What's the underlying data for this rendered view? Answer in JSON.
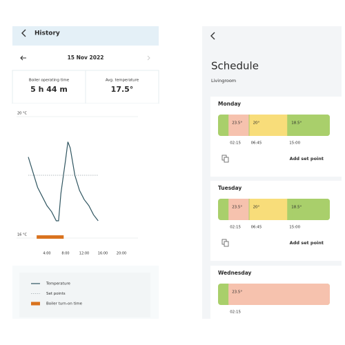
{
  "history": {
    "title": "History",
    "date": "15 Nov 2022",
    "stats": [
      {
        "label": "Boiler operating time",
        "value": "5 h 44 m"
      },
      {
        "label": "Avg. temperature",
        "value": "17.5°"
      }
    ],
    "chart_data": {
      "type": "line",
      "x": [
        0,
        1,
        2,
        3,
        4,
        5,
        6,
        6.5,
        7,
        8,
        8.5,
        9,
        10,
        11,
        12,
        13,
        14,
        15
      ],
      "series": [
        {
          "name": "Temperature",
          "color": "#2f5560",
          "values": [
            18.6,
            18.1,
            17.6,
            17.3,
            17.0,
            16.8,
            16.5,
            16.5,
            17.4,
            18.5,
            19.1,
            18.9,
            18.0,
            17.5,
            17.2,
            17.0,
            16.7,
            16.5
          ]
        },
        {
          "name": "Set points",
          "color": "#9aa5aa",
          "x": [
            0,
            15
          ],
          "values": [
            18,
            18
          ]
        },
        {
          "name": "Boiler turn-on time",
          "color": "#d9731f",
          "x": [
            1.8,
            7.6
          ]
        }
      ],
      "xlim": [
        0,
        24
      ],
      "ylim": [
        16,
        20
      ],
      "xticks": [
        {
          "value": 4,
          "label": "4:00"
        },
        {
          "value": 8,
          "label": "8:00"
        },
        {
          "value": 12,
          "label": "12:00"
        },
        {
          "value": 16,
          "label": "16:00"
        },
        {
          "value": 20,
          "label": "20:00"
        }
      ],
      "yticks": [
        {
          "value": 16,
          "label": "16 °C"
        },
        {
          "value": 20,
          "label": "20 °C"
        }
      ],
      "grid": true
    }
  },
  "schedule": {
    "title": "Schedule",
    "room": "Livingroom",
    "add_label": "Add set point",
    "days": [
      {
        "name": "Monday",
        "base_color": "#a9cf6b",
        "set_points": [
          {
            "time": "02:15",
            "temp": "23.5°",
            "color": "#f6c2ae"
          },
          {
            "time": "06:45",
            "temp": "20°",
            "color": "#f8dd7a"
          },
          {
            "time": "15:00",
            "temp": "18.5°",
            "color": "#a9cf6b"
          }
        ]
      },
      {
        "name": "Tuesday",
        "base_color": "#a9cf6b",
        "set_points": [
          {
            "time": "02:15",
            "temp": "23.5°",
            "color": "#f6c2ae"
          },
          {
            "time": "06:45",
            "temp": "20°",
            "color": "#f8dd7a"
          },
          {
            "time": "15:00",
            "temp": "18.5°",
            "color": "#a9cf6b"
          }
        ]
      },
      {
        "name": "Wednesday",
        "base_color": "#a9cf6b",
        "set_points": [
          {
            "time": "02:15",
            "temp": "23.5°",
            "color": "#f6c2ae"
          }
        ]
      }
    ]
  }
}
